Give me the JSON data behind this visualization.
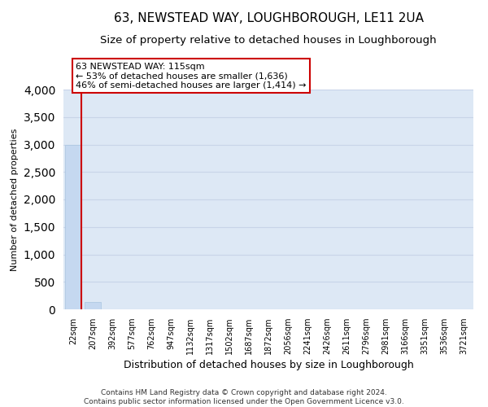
{
  "title": "63, NEWSTEAD WAY, LOUGHBOROUGH, LE11 2UA",
  "subtitle": "Size of property relative to detached houses in Loughborough",
  "xlabel": "Distribution of detached houses by size in Loughborough",
  "ylabel": "Number of detached properties",
  "categories": [
    "22sqm",
    "207sqm",
    "392sqm",
    "577sqm",
    "762sqm",
    "947sqm",
    "1132sqm",
    "1317sqm",
    "1502sqm",
    "1687sqm",
    "1872sqm",
    "2056sqm",
    "2241sqm",
    "2426sqm",
    "2611sqm",
    "2796sqm",
    "2981sqm",
    "3166sqm",
    "3351sqm",
    "3536sqm",
    "3721sqm"
  ],
  "bar_values": [
    3000,
    130,
    2,
    1,
    0,
    0,
    0,
    0,
    0,
    0,
    0,
    0,
    0,
    0,
    0,
    0,
    0,
    0,
    0,
    0,
    0
  ],
  "bar_color": "#c5d8f0",
  "bar_edgecolor": "#a8c4e0",
  "annotation_line1": "63 NEWSTEAD WAY: 115sqm",
  "annotation_line2": "← 53% of detached houses are smaller (1,636)",
  "annotation_line3": "46% of semi-detached houses are larger (1,414) →",
  "annotation_box_color": "#ffffff",
  "annotation_box_edgecolor": "#cc0000",
  "red_line_color": "#cc0000",
  "ylim": [
    0,
    4000
  ],
  "yticks": [
    0,
    500,
    1000,
    1500,
    2000,
    2500,
    3000,
    3500,
    4000
  ],
  "grid_color": "#c8d4e8",
  "bg_color": "#dde8f5",
  "footer_line1": "Contains HM Land Registry data © Crown copyright and database right 2024.",
  "footer_line2": "Contains public sector information licensed under the Open Government Licence v3.0.",
  "title_fontsize": 11,
  "subtitle_fontsize": 9.5
}
